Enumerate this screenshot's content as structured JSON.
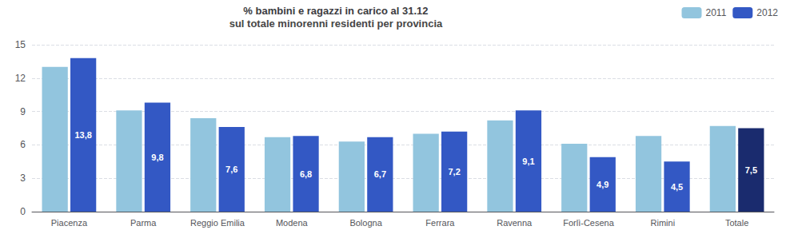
{
  "chart_data": {
    "type": "bar",
    "title": "% bambini e ragazzi in carico al 31.12",
    "subtitle": "sul totale minorenni residenti per provincia",
    "categories": [
      "Piacenza",
      "Parma",
      "Reggio Emilia",
      "Modena",
      "Bologna",
      "Ferrara",
      "Ravenna",
      "Forlì-Cesena",
      "Rimini",
      "Totale"
    ],
    "series": [
      {
        "name": "2011",
        "color": "#92c5de",
        "values": [
          13.0,
          9.1,
          8.4,
          6.7,
          6.3,
          7.0,
          8.2,
          6.1,
          6.8,
          7.7
        ]
      },
      {
        "name": "2012",
        "color": "#3358c4",
        "colors": [
          "#3358c4",
          "#3358c4",
          "#3358c4",
          "#3358c4",
          "#3358c4",
          "#3358c4",
          "#3358c4",
          "#3358c4",
          "#3358c4",
          "#1a2b6e"
        ],
        "values": [
          13.8,
          9.8,
          7.6,
          6.8,
          6.7,
          7.2,
          9.1,
          4.9,
          4.5,
          7.5
        ],
        "value_labels": [
          "13,8",
          "9,8",
          "7,6",
          "6,8",
          "6,7",
          "7,2",
          "9,1",
          "4,9",
          "4,5",
          "7,5"
        ],
        "data_labels": true
      }
    ],
    "ylim": [
      0,
      15
    ],
    "yticks": [
      0,
      3,
      6,
      9,
      12,
      15
    ],
    "grid": true,
    "legend": "upper right"
  }
}
